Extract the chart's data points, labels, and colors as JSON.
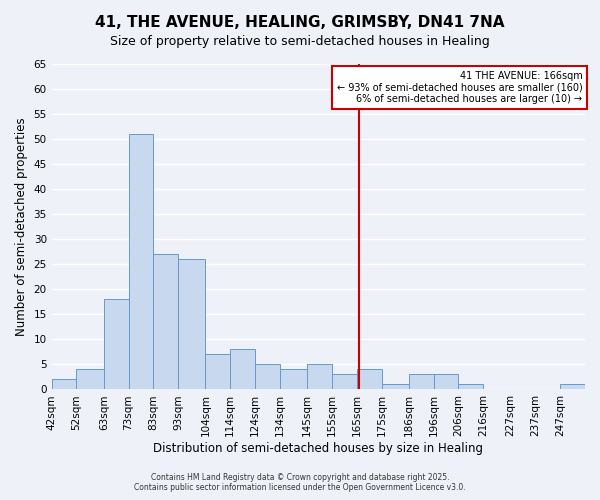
{
  "title": "41, THE AVENUE, HEALING, GRIMSBY, DN41 7NA",
  "subtitle": "Size of property relative to semi-detached houses in Healing",
  "xlabel": "Distribution of semi-detached houses by size in Healing",
  "ylabel": "Number of semi-detached properties",
  "bin_labels": [
    "42sqm",
    "52sqm",
    "63sqm",
    "73sqm",
    "83sqm",
    "93sqm",
    "104sqm",
    "114sqm",
    "124sqm",
    "134sqm",
    "145sqm",
    "155sqm",
    "165sqm",
    "175sqm",
    "186sqm",
    "196sqm",
    "206sqm",
    "216sqm",
    "227sqm",
    "237sqm",
    "247sqm"
  ],
  "bin_edges": [
    42,
    52,
    63,
    73,
    83,
    93,
    104,
    114,
    124,
    134,
    145,
    155,
    165,
    175,
    186,
    196,
    206,
    216,
    227,
    237,
    247
  ],
  "bar_heights": [
    2,
    4,
    18,
    51,
    27,
    26,
    7,
    8,
    5,
    4,
    5,
    3,
    4,
    1,
    3,
    3,
    1,
    0,
    0,
    0,
    1
  ],
  "bar_color": "#c8d8ee",
  "bar_edge_color": "#6699cc",
  "vline_x": 166,
  "vline_color": "#cc0000",
  "ylim": [
    0,
    65
  ],
  "yticks": [
    0,
    5,
    10,
    15,
    20,
    25,
    30,
    35,
    40,
    45,
    50,
    55,
    60,
    65
  ],
  "annotation_title": "41 THE AVENUE: 166sqm",
  "annotation_line1": "← 93% of semi-detached houses are smaller (160)",
  "annotation_line2": "6% of semi-detached houses are larger (10) →",
  "annotation_box_color": "#ffffff",
  "annotation_box_edge": "#cc0000",
  "footer1": "Contains HM Land Registry data © Crown copyright and database right 2025.",
  "footer2": "Contains public sector information licensed under the Open Government Licence v3.0.",
  "bg_color": "#eef2f8",
  "grid_color": "#ffffff",
  "title_fontsize": 11,
  "subtitle_fontsize": 9,
  "axis_label_fontsize": 8.5,
  "tick_fontsize": 7.5,
  "annotation_fontsize": 7
}
